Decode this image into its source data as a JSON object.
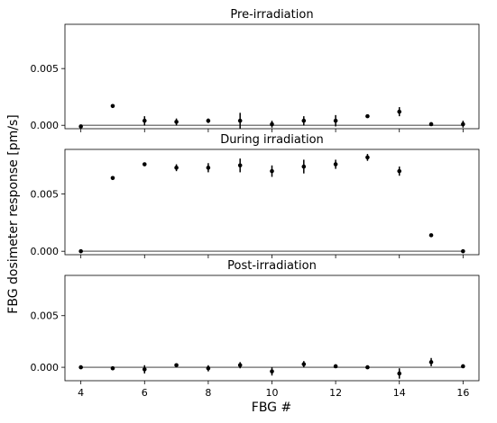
{
  "ylabel": "FBG dosimeter response [pm/s]",
  "xlabel": "FBG #",
  "chart_data": [
    {
      "type": "scatter",
      "title": "Pre-irradiation",
      "xlim": [
        3.5,
        16.5
      ],
      "ylim": [
        -0.0003,
        0.0089
      ],
      "xticks": [
        4,
        6,
        8,
        10,
        12,
        14,
        16
      ],
      "yticks": [
        0.0,
        0.005
      ],
      "ytick_labels": [
        "0.000",
        "0.005"
      ],
      "points": [
        {
          "x": 4,
          "y": -0.0001,
          "err": 0.0
        },
        {
          "x": 5,
          "y": 0.0017,
          "err": 0.0
        },
        {
          "x": 6,
          "y": 0.0004,
          "err": 0.0004
        },
        {
          "x": 7,
          "y": 0.0003,
          "err": 0.0003
        },
        {
          "x": 8,
          "y": 0.0004,
          "err": 0.0002
        },
        {
          "x": 9,
          "y": 0.0004,
          "err": 0.0007
        },
        {
          "x": 10,
          "y": 0.0001,
          "err": 0.0003
        },
        {
          "x": 11,
          "y": 0.0004,
          "err": 0.0004
        },
        {
          "x": 12,
          "y": 0.0004,
          "err": 0.0005
        },
        {
          "x": 13,
          "y": 0.0008,
          "err": 0.0
        },
        {
          "x": 14,
          "y": 0.0012,
          "err": 0.0004
        },
        {
          "x": 15,
          "y": 0.0001,
          "err": 0.0
        },
        {
          "x": 16,
          "y": 0.0001,
          "err": 0.0003
        }
      ],
      "baseline": {
        "x": [
          4,
          16
        ],
        "y": 0.0
      }
    },
    {
      "type": "scatter",
      "title": "During irradiation",
      "xlim": [
        3.5,
        16.5
      ],
      "ylim": [
        -0.0003,
        0.0089
      ],
      "xticks": [
        4,
        6,
        8,
        10,
        12,
        14,
        16
      ],
      "yticks": [
        0.0,
        0.005
      ],
      "ytick_labels": [
        "0.000",
        "0.005"
      ],
      "points": [
        {
          "x": 4,
          "y": 0.0,
          "err": 0.0
        },
        {
          "x": 5,
          "y": 0.0064,
          "err": 0.0
        },
        {
          "x": 6,
          "y": 0.0076,
          "err": 0.0
        },
        {
          "x": 7,
          "y": 0.0073,
          "err": 0.0003
        },
        {
          "x": 8,
          "y": 0.0073,
          "err": 0.0004
        },
        {
          "x": 9,
          "y": 0.0075,
          "err": 0.0006
        },
        {
          "x": 10,
          "y": 0.007,
          "err": 0.0005
        },
        {
          "x": 11,
          "y": 0.0074,
          "err": 0.0006
        },
        {
          "x": 12,
          "y": 0.0076,
          "err": 0.0004
        },
        {
          "x": 13,
          "y": 0.0082,
          "err": 0.0003
        },
        {
          "x": 14,
          "y": 0.007,
          "err": 0.0004
        },
        {
          "x": 15,
          "y": 0.0014,
          "err": 0.0
        },
        {
          "x": 16,
          "y": 0.0,
          "err": 0.0
        }
      ],
      "baseline": {
        "x": [
          4,
          16
        ],
        "y": 0.0
      }
    },
    {
      "type": "scatter",
      "title": "Post-irradiation",
      "xlim": [
        3.5,
        16.5
      ],
      "ylim": [
        -0.0013,
        0.0089
      ],
      "xticks": [
        4,
        6,
        8,
        10,
        12,
        14,
        16
      ],
      "yticks": [
        0.0,
        0.005
      ],
      "ytick_labels": [
        "0.000",
        "0.005"
      ],
      "points": [
        {
          "x": 4,
          "y": 0.0,
          "err": 0.0
        },
        {
          "x": 5,
          "y": -0.0001,
          "err": 0.0
        },
        {
          "x": 6,
          "y": -0.0002,
          "err": 0.0004
        },
        {
          "x": 7,
          "y": 0.0002,
          "err": 0.0
        },
        {
          "x": 8,
          "y": -0.0001,
          "err": 0.0003
        },
        {
          "x": 9,
          "y": 0.0002,
          "err": 0.0003
        },
        {
          "x": 10,
          "y": -0.0004,
          "err": 0.0004
        },
        {
          "x": 11,
          "y": 0.0003,
          "err": 0.0003
        },
        {
          "x": 12,
          "y": 0.0001,
          "err": 0.0
        },
        {
          "x": 13,
          "y": 0.0,
          "err": 0.0
        },
        {
          "x": 14,
          "y": -0.0006,
          "err": 0.0005
        },
        {
          "x": 15,
          "y": 0.0005,
          "err": 0.0004
        },
        {
          "x": 16,
          "y": 0.0001,
          "err": 0.0
        }
      ],
      "baseline": {
        "x": [
          4,
          16
        ],
        "y": 0.0
      }
    }
  ]
}
